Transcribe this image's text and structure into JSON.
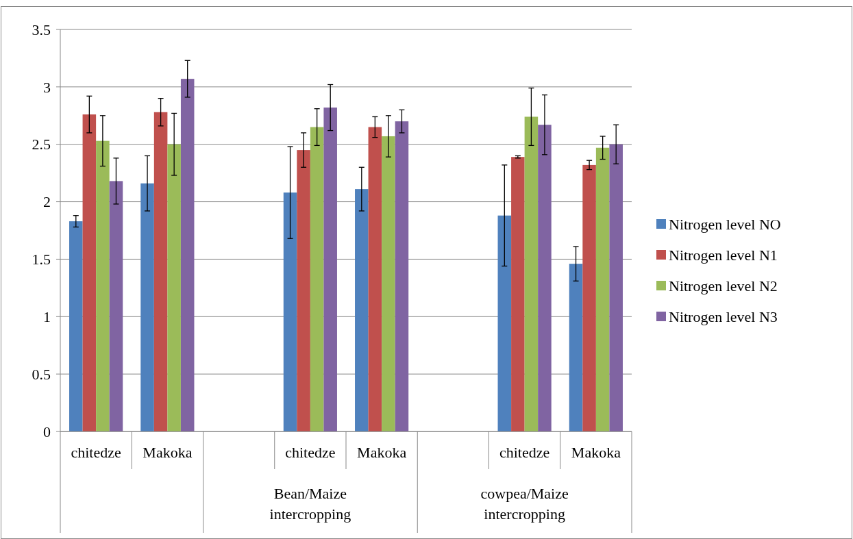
{
  "chart_data": {
    "type": "bar",
    "categories": [
      "chitedze",
      "Makoka",
      null,
      "chitedze",
      "Makoka",
      null,
      "chitedze",
      "Makoka"
    ],
    "series": [
      {
        "name": "Nitrogen level NO",
        "color": "#4f81bd",
        "values": [
          1.83,
          2.16,
          null,
          2.08,
          2.11,
          null,
          1.88,
          1.46
        ],
        "errors": [
          0.05,
          0.24,
          null,
          0.4,
          0.19,
          null,
          0.44,
          0.15
        ]
      },
      {
        "name": "Nitrogen level N1",
        "color": "#c0504d",
        "values": [
          2.76,
          2.78,
          null,
          2.45,
          2.65,
          null,
          2.39,
          2.32
        ],
        "errors": [
          0.16,
          0.12,
          null,
          0.15,
          0.09,
          null,
          0.01,
          0.04
        ]
      },
      {
        "name": "Nitrogen level N2",
        "color": "#9bbb59",
        "values": [
          2.53,
          2.5,
          null,
          2.65,
          2.57,
          null,
          2.74,
          2.47
        ],
        "errors": [
          0.22,
          0.27,
          null,
          0.16,
          0.18,
          null,
          0.25,
          0.1
        ]
      },
      {
        "name": "Nitrogen level N3",
        "color": "#8064a2",
        "values": [
          2.18,
          3.07,
          null,
          2.82,
          2.7,
          null,
          2.67,
          2.5
        ],
        "errors": [
          0.2,
          0.16,
          null,
          0.2,
          0.1,
          null,
          0.26,
          0.17
        ]
      }
    ],
    "annotations": [
      "Bean/Maize intercropping",
      "cowpea/Maize intercropping"
    ],
    "ylim": [
      0,
      3.5
    ],
    "yticks": [
      0,
      0.5,
      1,
      1.5,
      2,
      2.5,
      3,
      3.5
    ],
    "grid": "y",
    "legend": "right"
  }
}
